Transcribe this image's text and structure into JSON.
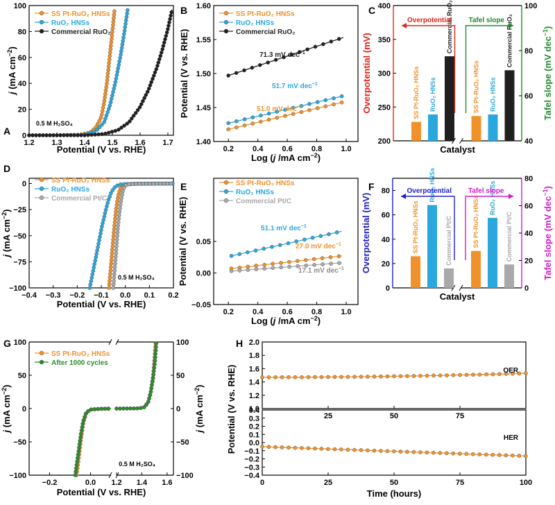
{
  "panels": {
    "A": {
      "letter": "A",
      "type": "line",
      "xlabel": "Potential (V vs. RHE)",
      "ylabel_italic": "j",
      "ylabel_rest": " (mA cm",
      "ylabel_sup": "−2",
      "ylabel_end": ")",
      "xlim": [
        1.2,
        1.72
      ],
      "ylim": [
        0,
        100
      ],
      "xticks": [
        "1.2",
        "1.3",
        "1.4",
        "1.5",
        "1.6",
        "1.7"
      ],
      "yticks": [
        "0",
        "20",
        "40",
        "60",
        "80",
        "100"
      ],
      "annotation": "0.5 M H₂SO₄",
      "series": [
        {
          "name": "SS Pt-RuO₂ HNSs",
          "color": "#F0922B",
          "points": [
            [
              1.2,
              0
            ],
            [
              1.3,
              0
            ],
            [
              1.38,
              0.3
            ],
            [
              1.42,
              2
            ],
            [
              1.44,
              6
            ],
            [
              1.46,
              14
            ],
            [
              1.47,
              25
            ],
            [
              1.48,
              40
            ],
            [
              1.49,
              60
            ],
            [
              1.5,
              80
            ],
            [
              1.508,
              97
            ]
          ]
        },
        {
          "name": "RuO₂ HNSs",
          "color": "#2AA7DC",
          "points": [
            [
              1.2,
              0
            ],
            [
              1.3,
              0
            ],
            [
              1.4,
              0.5
            ],
            [
              1.44,
              3
            ],
            [
              1.47,
              10
            ],
            [
              1.49,
              22
            ],
            [
              1.51,
              40
            ],
            [
              1.53,
              62
            ],
            [
              1.545,
              82
            ],
            [
              1.555,
              97
            ]
          ]
        },
        {
          "name": "Commercial RuO₂",
          "color": "#1F1F1F",
          "points": [
            [
              1.2,
              0
            ],
            [
              1.4,
              0
            ],
            [
              1.47,
              1
            ],
            [
              1.52,
              4
            ],
            [
              1.56,
              10
            ],
            [
              1.6,
              22
            ],
            [
              1.63,
              35
            ],
            [
              1.66,
              52
            ],
            [
              1.68,
              66
            ],
            [
              1.7,
              82
            ],
            [
              1.715,
              97
            ]
          ]
        }
      ]
    },
    "B": {
      "letter": "B",
      "type": "line",
      "xlabel_pre": "Log (",
      "xlabel_italic": "j",
      "xlabel_rest": " /mA cm",
      "xlabel_sup": "−2",
      "xlabel_end": ")",
      "ylabel": "Potential (V vs. RHE)",
      "xlim": [
        0.1,
        1.08
      ],
      "ylim": [
        1.4,
        1.6
      ],
      "xticks": [
        "0.2",
        "0.4",
        "0.6",
        "0.8",
        "1.0"
      ],
      "yticks": [
        "1.40",
        "1.45",
        "1.50",
        "1.55",
        "1.60"
      ],
      "series": [
        {
          "name": "SS Pt-RuO₂ HNSs",
          "color": "#F0922B",
          "points": [
            [
              0.2,
              1.418
            ],
            [
              0.98,
              1.458
            ]
          ],
          "slope_label": "51.0 mV dec"
        },
        {
          "name": "RuO₂ HNSs",
          "color": "#2AA7DC",
          "points": [
            [
              0.2,
              1.427
            ],
            [
              0.98,
              1.467
            ]
          ],
          "slope_label": "51.7 mV dec"
        },
        {
          "name": "Commercial RuO₂",
          "color": "#1F1F1F",
          "points": [
            [
              0.2,
              1.497
            ],
            [
              0.98,
              1.553
            ]
          ],
          "slope_label": "71.3 mV dec"
        }
      ],
      "slope_sup": "−1"
    },
    "C": {
      "letter": "C",
      "type": "bar",
      "xlabel": "Catalyst",
      "ylabel_left": "Overpotential (mV)",
      "ylabel_right_pre": "Tafel slope (mV dec",
      "ylabel_right_sup": "−1",
      "ylabel_right_end": ")",
      "ylim_left": [
        200,
        400
      ],
      "ylim_right": [
        40,
        100
      ],
      "yticks_left": [
        "200",
        "250",
        "300",
        "350",
        "400"
      ],
      "yticks_right": [
        "40",
        "60",
        "80",
        "100"
      ],
      "left_color": "#E0231B",
      "right_color": "#1E8A2E",
      "arrow_left_label": "Overpotential",
      "arrow_right_label": "Tafel slope",
      "categories": [
        "SS Pt-RuO₂ HNSs",
        "RuO₂ HNSs",
        "Commercial RuO₂"
      ],
      "overpotential": [
        228,
        239,
        325
      ],
      "tafel": [
        51.0,
        51.7,
        71.3
      ]
    },
    "D": {
      "letter": "D",
      "type": "line",
      "xlabel": "Potential (V vs. RHE)",
      "ylabel_italic": "j",
      "ylabel_rest": " (mA cm",
      "ylabel_sup": "−2",
      "ylabel_end": ")",
      "xlim": [
        -0.4,
        0.2
      ],
      "ylim": [
        -100,
        5
      ],
      "xticks": [
        "−0.4",
        "−0.3",
        "−0.2",
        "−0.1",
        "0.0",
        "0.1",
        "0.2"
      ],
      "yticks": [
        "0",
        "−25",
        "−50",
        "−75",
        "−100"
      ],
      "annotation": "0.5 M H₂SO₄",
      "series": [
        {
          "name": "SS Pt-RuO₂ HNSs",
          "color": "#F0922B",
          "points": [
            [
              -0.068,
              -100
            ],
            [
              -0.062,
              -85
            ],
            [
              -0.056,
              -68
            ],
            [
              -0.05,
              -52
            ],
            [
              -0.044,
              -37
            ],
            [
              -0.038,
              -24
            ],
            [
              -0.03,
              -12
            ],
            [
              -0.02,
              -4
            ],
            [
              -0.005,
              -1
            ],
            [
              0.03,
              -0.3
            ],
            [
              0.2,
              0
            ]
          ]
        },
        {
          "name": "RuO₂ HNSs",
          "color": "#2AA7DC",
          "points": [
            [
              -0.148,
              -100
            ],
            [
              -0.135,
              -85
            ],
            [
              -0.122,
              -70
            ],
            [
              -0.11,
              -56
            ],
            [
              -0.098,
              -42
            ],
            [
              -0.085,
              -29
            ],
            [
              -0.072,
              -17
            ],
            [
              -0.058,
              -8
            ],
            [
              -0.04,
              -2.5
            ],
            [
              -0.02,
              -0.8
            ],
            [
              0.05,
              -0.2
            ],
            [
              0.2,
              0
            ]
          ]
        },
        {
          "name": "Commercial Pt/C",
          "color": "#A9A9A9",
          "points": [
            [
              -0.05,
              -100
            ],
            [
              -0.045,
              -85
            ],
            [
              -0.04,
              -70
            ],
            [
              -0.035,
              -55
            ],
            [
              -0.03,
              -40
            ],
            [
              -0.024,
              -27
            ],
            [
              -0.017,
              -15
            ],
            [
              -0.008,
              -5
            ],
            [
              0.005,
              -1
            ],
            [
              0.04,
              -0.3
            ],
            [
              0.2,
              0
            ]
          ]
        }
      ]
    },
    "E": {
      "letter": "E",
      "type": "line",
      "xlabel_pre": "Log (",
      "xlabel_italic": "j",
      "xlabel_rest": " /mA cm",
      "xlabel_sup": "−2",
      "xlabel_end": ")",
      "ylabel": "Potential (V vs. RHE)",
      "xlim": [
        0.1,
        1.08
      ],
      "ylim": [
        -0.05,
        0.15
      ],
      "xticks": [
        "0.2",
        "0.4",
        "0.6",
        "0.8",
        "1.0"
      ],
      "yticks": [
        "−0.05",
        "0.00",
        "0.05"
      ],
      "series": [
        {
          "name": "SS Pt-RuO₂ HNSs",
          "color": "#F0922B",
          "points": [
            [
              0.22,
              0.007
            ],
            [
              0.97,
              0.027
            ]
          ],
          "slope_label": "27.0 mV dec"
        },
        {
          "name": "RuO₂ HNSs",
          "color": "#2AA7DC",
          "points": [
            [
              0.22,
              0.027
            ],
            [
              0.97,
              0.066
            ]
          ],
          "slope_label": "51.1 mV dec"
        },
        {
          "name": "Commercial Pt/C",
          "color": "#A9A9A9",
          "points": [
            [
              0.22,
              0.003
            ],
            [
              0.97,
              0.016
            ]
          ],
          "slope_label": "17.1 mV dec"
        }
      ],
      "slope_sup": "−1"
    },
    "F": {
      "letter": "F",
      "type": "bar",
      "xlabel": "Catalyst",
      "ylabel_left": "Overpotential (mV)",
      "ylabel_right_pre": "Tafel slope (mV dec",
      "ylabel_right_sup": "−1",
      "ylabel_right_end": ")",
      "ylim_left": [
        0,
        90
      ],
      "ylim_right": [
        0,
        80
      ],
      "yticks_left": [
        "0",
        "20",
        "40",
        "60",
        "80"
      ],
      "yticks_right": [
        "0",
        "20",
        "40",
        "60",
        "80"
      ],
      "left_color": "#1E1EC8",
      "right_color": "#D01AC8",
      "arrow_left_label": "Overpotential",
      "arrow_right_label": "Tafel slope",
      "categories": [
        "SS Pt-RuO₂ HNSs",
        "RuO₂ HNSs",
        "Commercial Pt/C"
      ],
      "overpotential": [
        26,
        68,
        16
      ],
      "tafel": [
        27.0,
        51.1,
        17.1
      ]
    },
    "G": {
      "letter": "G",
      "type": "line",
      "xlabel": "Potential (V vs. RHE)",
      "ylabel_italic": "j",
      "ylabel_rest": " (mA cm",
      "ylabel_sup": "−2",
      "ylabel_end": ")",
      "xlim_left": [
        -0.3,
        0.1
      ],
      "xlim_right": [
        1.2,
        1.65
      ],
      "ylim": [
        -100,
        100
      ],
      "xticks_left": [
        "−0.2",
        "0.0"
      ],
      "xticks_right": [
        "1.2",
        "1.4",
        "1.6"
      ],
      "yticks": [
        "100",
        "50",
        "0",
        "−50",
        "−100"
      ],
      "annotation": "0.5 M H₂SO₄",
      "series": [
        {
          "name": "SS Pt-RuO₂ HNSs",
          "color": "#F0922B",
          "her": [
            [
              -0.068,
              -100
            ],
            [
              -0.06,
              -80
            ],
            [
              -0.052,
              -60
            ],
            [
              -0.044,
              -40
            ],
            [
              -0.034,
              -20
            ],
            [
              -0.02,
              -6
            ],
            [
              0.0,
              -1.5
            ],
            [
              0.05,
              -0.3
            ],
            [
              0.1,
              0
            ]
          ],
          "oer": [
            [
              1.2,
              0
            ],
            [
              1.38,
              0.3
            ],
            [
              1.42,
              2
            ],
            [
              1.45,
              10
            ],
            [
              1.47,
              25
            ],
            [
              1.49,
              50
            ],
            [
              1.5,
              75
            ],
            [
              1.51,
              100
            ]
          ]
        },
        {
          "name": "After 1000 cycles",
          "color": "#2E8B2E",
          "her": [
            [
              -0.075,
              -100
            ],
            [
              -0.066,
              -80
            ],
            [
              -0.057,
              -60
            ],
            [
              -0.048,
              -40
            ],
            [
              -0.037,
              -20
            ],
            [
              -0.022,
              -6
            ],
            [
              0.0,
              -1.5
            ],
            [
              0.05,
              -0.3
            ],
            [
              0.1,
              0
            ]
          ],
          "oer": [
            [
              1.2,
              0
            ],
            [
              1.38,
              0.3
            ],
            [
              1.42,
              2
            ],
            [
              1.45,
              9
            ],
            [
              1.47,
              23
            ],
            [
              1.49,
              47
            ],
            [
              1.505,
              72
            ],
            [
              1.515,
              100
            ]
          ]
        }
      ]
    },
    "H": {
      "letter": "H",
      "type": "line",
      "xlabel": "Time (hours)",
      "ylabel": "Potential (V vs. RHE)",
      "xlim": [
        0,
        100
      ],
      "ylim_top": [
        1.0,
        2.0
      ],
      "ylim_bottom": [
        -0.4,
        0.4
      ],
      "xticks": [
        "0",
        "25",
        "50",
        "75",
        "100"
      ],
      "xticks_mid": [
        "25",
        "50",
        "75"
      ],
      "yticks_top": [
        "1.0",
        "1.2",
        "1.4",
        "1.6",
        "1.8",
        "2.0"
      ],
      "yticks_bottom": [
        "−0.4",
        "−0.3",
        "−0.2",
        "−0.1",
        "0.0",
        "0.1",
        "0.2",
        "0.3",
        "0.4"
      ],
      "label_top": "OER",
      "label_bottom": "HER",
      "color": "#F0922B",
      "oer_start": 1.47,
      "oer_end": 1.53,
      "her_start": -0.05,
      "her_end": -0.165
    }
  }
}
